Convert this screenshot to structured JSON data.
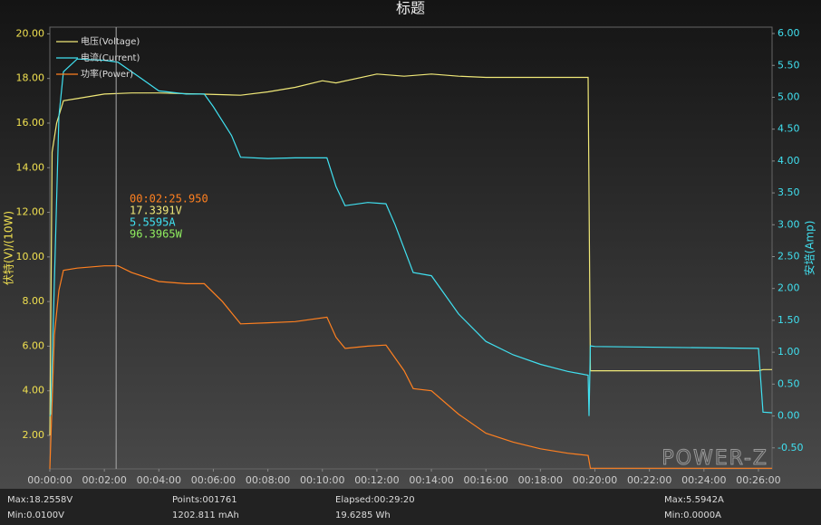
{
  "chart_data": {
    "type": "line",
    "title": "标题",
    "y_label": "伏特(V)/(10W)",
    "y2_label": "安培(Amp)",
    "xlim": [
      0,
      1590
    ],
    "xticks": [
      {
        "value": 0,
        "label": "00:00:00"
      },
      {
        "value": 120,
        "label": "00:02:00"
      },
      {
        "value": 240,
        "label": "00:04:00"
      },
      {
        "value": 360,
        "label": "00:06:00"
      },
      {
        "value": 480,
        "label": "00:08:00"
      },
      {
        "value": 600,
        "label": "00:10:00"
      },
      {
        "value": 720,
        "label": "00:12:00"
      },
      {
        "value": 840,
        "label": "00:14:00"
      },
      {
        "value": 960,
        "label": "00:16:00"
      },
      {
        "value": 1080,
        "label": "00:18:00"
      },
      {
        "value": 1200,
        "label": "00:20:00"
      },
      {
        "value": 1320,
        "label": "00:22:00"
      },
      {
        "value": 1440,
        "label": "00:24:00"
      },
      {
        "value": 1560,
        "label": "00:26:00"
      }
    ],
    "ylim": [
      0.5,
      20.3
    ],
    "yticks": [
      {
        "value": 2,
        "label": "2.00"
      },
      {
        "value": 4,
        "label": "4.00"
      },
      {
        "value": 6,
        "label": "6.00"
      },
      {
        "value": 8,
        "label": "8.00"
      },
      {
        "value": 10,
        "label": "10.00"
      },
      {
        "value": 12,
        "label": "12.00"
      },
      {
        "value": 14,
        "label": "14.00"
      },
      {
        "value": 16,
        "label": "16.00"
      },
      {
        "value": 18,
        "label": "18.00"
      },
      {
        "value": 20,
        "label": "20.00"
      }
    ],
    "y2lim": [
      -0.83,
      6.1
    ],
    "y2ticks": [
      {
        "value": -0.5,
        "label": "-0.50"
      },
      {
        "value": 0,
        "label": "0.00"
      },
      {
        "value": 0.5,
        "label": "0.50"
      },
      {
        "value": 1,
        "label": "1.00"
      },
      {
        "value": 1.5,
        "label": "1.50"
      },
      {
        "value": 2,
        "label": "2.00"
      },
      {
        "value": 2.5,
        "label": "2.50"
      },
      {
        "value": 3,
        "label": "3.00"
      },
      {
        "value": 3.5,
        "label": "3.50"
      },
      {
        "value": 4,
        "label": "4.00"
      },
      {
        "value": 4.5,
        "label": "4.50"
      },
      {
        "value": 5,
        "label": "5.00"
      },
      {
        "value": 5.5,
        "label": "5.50"
      },
      {
        "value": 6,
        "label": "6.00"
      }
    ],
    "series": [
      {
        "name": "电压(Voltage)",
        "color": "#f0e878",
        "axis": "y",
        "x": [
          0,
          5,
          15,
          30,
          60,
          120,
          180,
          240,
          330,
          420,
          480,
          540,
          600,
          630,
          720,
          780,
          840,
          900,
          960,
          1080,
          1185,
          1190,
          1560,
          1570,
          1590
        ],
        "values": [
          2,
          14.7,
          16.0,
          17.0,
          17.1,
          17.3,
          17.35,
          17.35,
          17.3,
          17.25,
          17.4,
          17.6,
          17.9,
          17.8,
          18.2,
          18.1,
          18.2,
          18.1,
          18.05,
          18.05,
          18.05,
          4.9,
          4.9,
          4.95,
          4.95
        ]
      },
      {
        "name": "电流(Current)",
        "color": "#40e0f0",
        "axis": "y2",
        "x": [
          0,
          2,
          10,
          20,
          30,
          60,
          120,
          150,
          200,
          240,
          300,
          340,
          360,
          400,
          420,
          480,
          540,
          610,
          630,
          650,
          700,
          740,
          760,
          800,
          840,
          900,
          960,
          1020,
          1080,
          1140,
          1185,
          1187,
          1190,
          1200,
          1560,
          1570,
          1590
        ],
        "values": [
          0,
          0.03,
          2.1,
          4.7,
          5.4,
          5.6,
          5.58,
          5.55,
          5.3,
          5.1,
          5.05,
          5.05,
          4.85,
          4.4,
          4.06,
          4.04,
          4.05,
          4.05,
          3.6,
          3.3,
          3.35,
          3.33,
          3.0,
          2.25,
          2.2,
          1.6,
          1.17,
          0.96,
          0.81,
          0.7,
          0.64,
          0.0,
          1.1,
          1.09,
          1.06,
          0.06,
          0.05
        ]
      },
      {
        "name": "功率(Power)",
        "color": "#ff8020",
        "axis": "y",
        "x": [
          0,
          5,
          10,
          20,
          30,
          60,
          120,
          150,
          180,
          240,
          300,
          340,
          380,
          420,
          480,
          540,
          610,
          630,
          650,
          700,
          740,
          780,
          800,
          840,
          900,
          960,
          1020,
          1080,
          1140,
          1185,
          1190,
          1590
        ],
        "values": [
          0.5,
          3.5,
          6.5,
          8.5,
          9.4,
          9.5,
          9.6,
          9.6,
          9.3,
          8.9,
          8.8,
          8.8,
          8.0,
          7.0,
          7.05,
          7.1,
          7.3,
          6.4,
          5.9,
          6.0,
          6.05,
          4.9,
          4.1,
          4.0,
          2.95,
          2.1,
          1.7,
          1.4,
          1.2,
          1.1,
          0.53,
          0.53
        ]
      }
    ],
    "cursor": {
      "x": 145.95,
      "labels": [
        {
          "text": "00:02:25.950",
          "color": "#ff8020"
        },
        {
          "text": "17.3391V",
          "color": "#f0e878"
        },
        {
          "text": "5.5595A",
          "color": "#40e0f0"
        },
        {
          "text": "96.3965W",
          "color": "#90ee60"
        }
      ]
    },
    "watermark": "POWER-Z",
    "footer": [
      "Max:18.2558V",
      "Min:0.0100V",
      "Points:001761",
      "1202.811 mAh",
      "Elapsed:00:29:20",
      "19.6285 Wh",
      "Max:5.5942A",
      "Min:0.0000A"
    ]
  }
}
